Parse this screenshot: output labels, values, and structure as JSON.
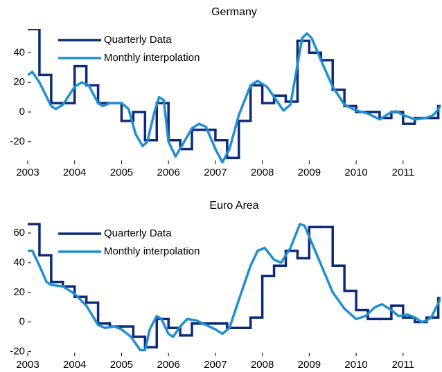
{
  "chart_data": [
    {
      "type": "line",
      "title": "Germany",
      "legend": "upper left",
      "xlim": [
        2003,
        2011.8
      ],
      "xticks": [
        2003,
        2004,
        2005,
        2006,
        2007,
        2008,
        2009,
        2010,
        2011
      ],
      "ylim": [
        -35,
        56
      ],
      "yticks": [
        -20,
        0,
        20,
        40
      ],
      "series": [
        {
          "name": "Quarterly Data",
          "color": "#0d2a7a",
          "step": true,
          "x": [
            2003,
            2003.25,
            2003.5,
            2003.75,
            2004,
            2004.25,
            2004.5,
            2004.75,
            2005,
            2005.25,
            2005.5,
            2005.75,
            2006,
            2006.25,
            2006.5,
            2006.75,
            2007,
            2007.25,
            2007.5,
            2007.75,
            2008,
            2008.25,
            2008.5,
            2008.75,
            2009,
            2009.25,
            2009.5,
            2009.75,
            2010,
            2010.25,
            2010.5,
            2010.75,
            2011,
            2011.25,
            2011.5,
            2011.75
          ],
          "values": [
            56,
            25,
            6,
            6,
            31,
            18,
            6,
            6,
            -6,
            0,
            -19,
            6,
            -19,
            -25,
            -12,
            -12,
            -19,
            -31,
            -6,
            18,
            6,
            11,
            7,
            48,
            40,
            35,
            15,
            4,
            0,
            0,
            -4,
            0,
            -8,
            -4,
            -4,
            4
          ]
        },
        {
          "name": "Monthly interpolation",
          "color": "#1f8fd0",
          "x": [
            2003,
            2003.1,
            2003.25,
            2003.5,
            2003.6,
            2003.75,
            2004,
            2004.15,
            2004.3,
            2004.5,
            2004.6,
            2004.75,
            2005,
            2005.15,
            2005.3,
            2005.45,
            2005.55,
            2005.7,
            2005.8,
            2005.9,
            2006,
            2006.15,
            2006.3,
            2006.5,
            2006.65,
            2006.8,
            2007,
            2007.15,
            2007.3,
            2007.5,
            2007.75,
            2007.9,
            2008.1,
            2008.3,
            2008.45,
            2008.6,
            2008.75,
            2008.85,
            2008.95,
            2009.05,
            2009.25,
            2009.5,
            2009.75,
            2010,
            2010.25,
            2010.5,
            2010.75,
            2010.85,
            2011,
            2011.25,
            2011.5,
            2011.65,
            2011.8
          ],
          "values": [
            25,
            27,
            20,
            4,
            2,
            5,
            17,
            20,
            18,
            6,
            4,
            6,
            6,
            2,
            -15,
            -23,
            -20,
            0,
            10,
            8,
            -20,
            -30,
            -22,
            -11,
            -8,
            -10,
            -25,
            -34,
            -25,
            -2,
            18,
            21,
            17,
            8,
            1,
            5,
            32,
            50,
            53,
            50,
            35,
            17,
            5,
            1,
            -1,
            -5,
            0,
            0.5,
            -2,
            -5,
            -4,
            -2,
            4
          ]
        }
      ]
    },
    {
      "type": "line",
      "title": "Euro Area",
      "legend": "upper left",
      "xlim": [
        2003,
        2011.8
      ],
      "xticks": [
        2003,
        2004,
        2005,
        2006,
        2007,
        2008,
        2009,
        2010,
        2011
      ],
      "ylim": [
        -23,
        67
      ],
      "yticks": [
        -20,
        0,
        20,
        40,
        60
      ],
      "series": [
        {
          "name": "Quarterly Data",
          "color": "#0d2a7a",
          "step": true,
          "x": [
            2003,
            2003.25,
            2003.5,
            2003.75,
            2004,
            2004.25,
            2004.5,
            2004.75,
            2005,
            2005.25,
            2005.5,
            2005.75,
            2006,
            2006.25,
            2006.5,
            2006.75,
            2007,
            2007.25,
            2007.5,
            2007.75,
            2008,
            2008.25,
            2008.5,
            2008.75,
            2009,
            2009.25,
            2009.5,
            2009.75,
            2010,
            2010.25,
            2010.5,
            2010.75,
            2011,
            2011.25,
            2011.5,
            2011.75
          ],
          "values": [
            66,
            45,
            27,
            24,
            17,
            13,
            -1,
            -3,
            -3,
            -10,
            -17,
            2,
            -4,
            -9,
            -1,
            -1,
            -1,
            -4,
            -4,
            3,
            31,
            38,
            48,
            43,
            64,
            64,
            38,
            21,
            8,
            2,
            2,
            11,
            3,
            0,
            3,
            16
          ]
        },
        {
          "name": "Monthly interpolation",
          "color": "#1f8fd0",
          "x": [
            2003,
            2003.1,
            2003.25,
            2003.4,
            2003.5,
            2003.75,
            2004,
            2004.25,
            2004.5,
            2004.65,
            2004.85,
            2005,
            2005.2,
            2005.4,
            2005.5,
            2005.6,
            2005.75,
            2005.85,
            2006,
            2006.1,
            2006.25,
            2006.4,
            2006.6,
            2006.8,
            2007,
            2007.15,
            2007.3,
            2007.5,
            2007.75,
            2007.9,
            2008.05,
            2008.25,
            2008.4,
            2008.6,
            2008.8,
            2008.9,
            2009.1,
            2009.3,
            2009.5,
            2009.75,
            2010,
            2010.2,
            2010.4,
            2010.55,
            2010.75,
            2010.9,
            2011.1,
            2011.25,
            2011.4,
            2011.5,
            2011.6,
            2011.8
          ],
          "values": [
            48,
            48,
            38,
            27,
            25,
            24,
            19,
            11,
            -2,
            -4,
            -3,
            -5,
            -10,
            -19,
            -19,
            -5,
            4,
            2,
            -8,
            -10,
            -3,
            2,
            1,
            -2,
            -5,
            -8,
            -4,
            15,
            38,
            48,
            50,
            42,
            40,
            50,
            66,
            65,
            50,
            35,
            20,
            9,
            2,
            4,
            10,
            12,
            8,
            4,
            5,
            3,
            0,
            1,
            3,
            16
          ]
        }
      ]
    }
  ]
}
